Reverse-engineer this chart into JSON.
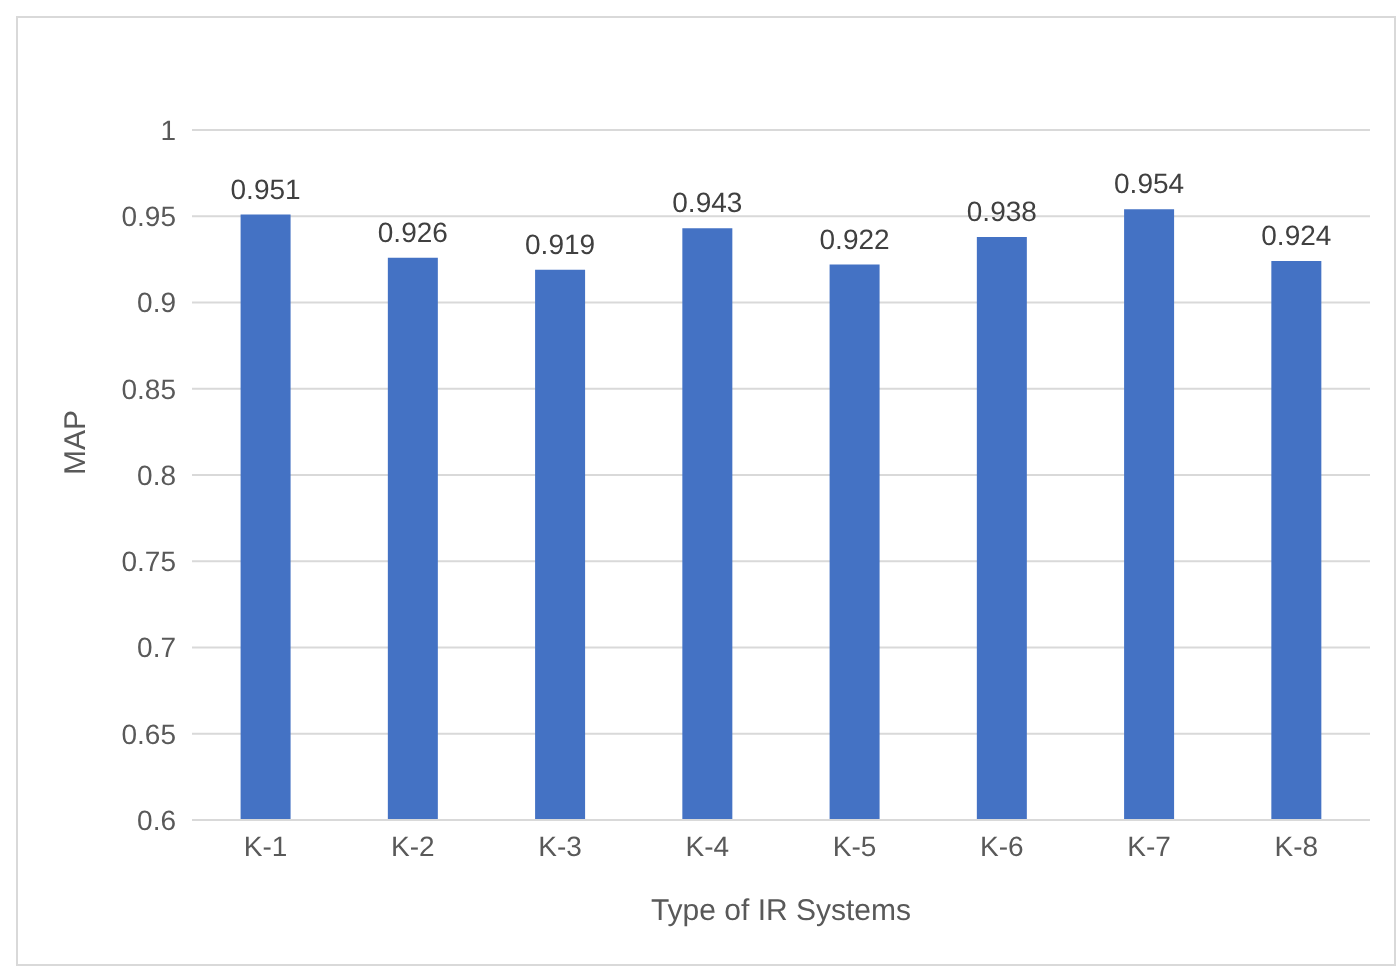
{
  "chart_data": {
    "type": "bar",
    "xlabel": "Type of IR Systems",
    "ylabel": "MAP",
    "categories": [
      "K-1",
      "K-2",
      "K-3",
      "K-4",
      "K-5",
      "K-6",
      "K-7",
      "K-8"
    ],
    "values": [
      0.951,
      0.926,
      0.919,
      0.943,
      0.922,
      0.938,
      0.954,
      0.924
    ],
    "color": "#4472c4",
    "ylim": [
      0.6,
      1
    ],
    "yticks": [
      0.6,
      0.65,
      0.7,
      0.75,
      0.8,
      0.85,
      0.9,
      0.95,
      1
    ],
    "grid": "y",
    "data_labels": true
  }
}
